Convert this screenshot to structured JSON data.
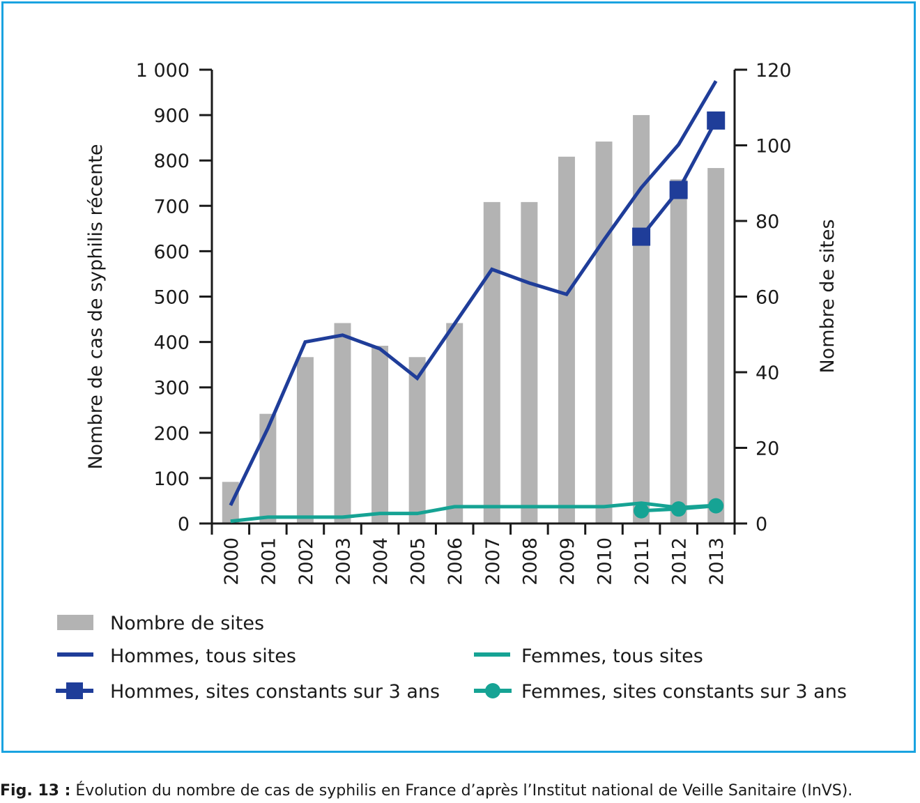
{
  "colors": {
    "frame": "#1aa3e0",
    "bars": "#b3b3b3",
    "hommes": "#1f3d99",
    "femmes": "#16a394",
    "axis": "#1a1a1a"
  },
  "chart_data": {
    "type": "bar",
    "categories": [
      "2000",
      "2001",
      "2002",
      "2003",
      "2004",
      "2005",
      "2006",
      "2007",
      "2008",
      "2009",
      "2010",
      "2011",
      "2012",
      "2013"
    ],
    "ylabel": "Nombre de cas de syphilis récente",
    "y2label": "Nombre de sites",
    "ylim": [
      0,
      1000
    ],
    "y2lim": [
      0,
      120
    ],
    "yticks": [
      "0",
      "100",
      "200",
      "300",
      "400",
      "500",
      "600",
      "700",
      "800",
      "900",
      "1 000"
    ],
    "y2ticks": [
      "0",
      "20",
      "40",
      "60",
      "80",
      "100",
      "120"
    ],
    "grid": false,
    "legend_position": "bottom",
    "series": [
      {
        "name": "Nombre de sites",
        "kind": "bar",
        "axis": "right",
        "values": [
          11,
          29,
          44,
          53,
          47,
          44,
          53,
          85,
          85,
          97,
          101,
          108,
          91,
          94
        ]
      },
      {
        "name": "Hommes, tous sites",
        "kind": "line",
        "axis": "left",
        "values": [
          40,
          210,
          400,
          415,
          385,
          320,
          440,
          560,
          530,
          505,
          625,
          740,
          835,
          975
        ]
      },
      {
        "name": "Hommes, sites constants sur 3 ans",
        "kind": "line-square",
        "axis": "left",
        "values": [
          null,
          null,
          null,
          null,
          null,
          null,
          null,
          null,
          null,
          null,
          null,
          632,
          735,
          888
        ]
      },
      {
        "name": "Femmes, tous sites",
        "kind": "line",
        "axis": "left",
        "values": [
          5,
          14,
          14,
          14,
          22,
          22,
          37,
          37,
          37,
          37,
          37,
          45,
          35,
          40
        ]
      },
      {
        "name": "Femmes, sites constants sur 3 ans",
        "kind": "line-dot",
        "axis": "left",
        "values": [
          null,
          null,
          null,
          null,
          null,
          null,
          null,
          null,
          null,
          null,
          null,
          28,
          32,
          39
        ]
      }
    ]
  },
  "legend": {
    "items": [
      {
        "label": "Nombre de sites"
      },
      {
        "label": "Hommes, tous sites"
      },
      {
        "label": "Hommes, sites constants sur 3 ans"
      },
      {
        "label": "Femmes, tous sites"
      },
      {
        "label": "Femmes, sites constants sur 3 ans"
      }
    ]
  },
  "caption": {
    "prefix": "Fig. 13 :",
    "text": " Évolution du nombre de cas de syphilis en France d’après l’Institut national de Veille Sanitaire (InVS)."
  }
}
